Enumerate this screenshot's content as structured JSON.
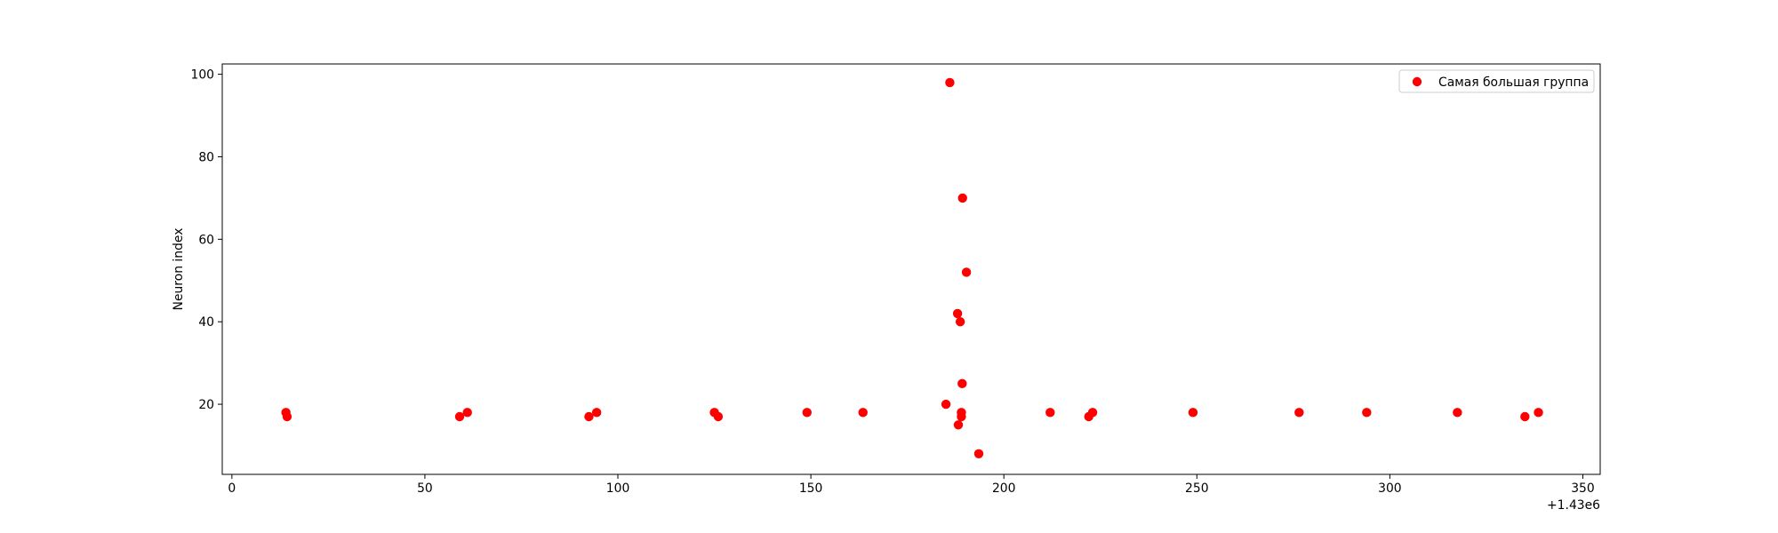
{
  "chart_data": {
    "type": "scatter",
    "title": "",
    "xlabel": "",
    "ylabel": "Neuron index",
    "x_offset_label": "+1.43e6",
    "xlim": [
      1429997.5,
      1430354.5
    ],
    "ylim": [
      3.0,
      102.5
    ],
    "xticks": [
      0,
      50,
      100,
      150,
      200,
      250,
      300,
      350
    ],
    "xtick_labels": [
      "0",
      "50",
      "100",
      "150",
      "200",
      "250",
      "300",
      "350"
    ],
    "yticks": [
      20,
      40,
      60,
      80,
      100
    ],
    "ytick_labels": [
      "20",
      "40",
      "60",
      "80",
      "100"
    ],
    "grid": false,
    "legend_position": "top-right",
    "series": [
      {
        "name": "Самая большая группа",
        "color": "#ff0000",
        "marker": "circle",
        "points": [
          {
            "x": 1430014,
            "y": 18
          },
          {
            "x": 1430014.3,
            "y": 17
          },
          {
            "x": 1430059,
            "y": 17
          },
          {
            "x": 1430061,
            "y": 18
          },
          {
            "x": 1430092.5,
            "y": 17
          },
          {
            "x": 1430094.5,
            "y": 18
          },
          {
            "x": 1430125,
            "y": 18
          },
          {
            "x": 1430126,
            "y": 17
          },
          {
            "x": 1430149,
            "y": 18
          },
          {
            "x": 1430163.5,
            "y": 18
          },
          {
            "x": 1430185,
            "y": 20
          },
          {
            "x": 1430186,
            "y": 98
          },
          {
            "x": 1430188,
            "y": 42
          },
          {
            "x": 1430188.2,
            "y": 15
          },
          {
            "x": 1430188.7,
            "y": 40
          },
          {
            "x": 1430189,
            "y": 18
          },
          {
            "x": 1430189,
            "y": 17
          },
          {
            "x": 1430189.2,
            "y": 25
          },
          {
            "x": 1430189.3,
            "y": 70
          },
          {
            "x": 1430190.3,
            "y": 52
          },
          {
            "x": 1430193.5,
            "y": 8
          },
          {
            "x": 1430212,
            "y": 18
          },
          {
            "x": 1430222,
            "y": 17
          },
          {
            "x": 1430223,
            "y": 18
          },
          {
            "x": 1430249,
            "y": 18
          },
          {
            "x": 1430276.5,
            "y": 18
          },
          {
            "x": 1430294,
            "y": 18
          },
          {
            "x": 1430317.5,
            "y": 18
          },
          {
            "x": 1430335,
            "y": 17
          },
          {
            "x": 1430338.5,
            "y": 18
          }
        ]
      }
    ]
  }
}
